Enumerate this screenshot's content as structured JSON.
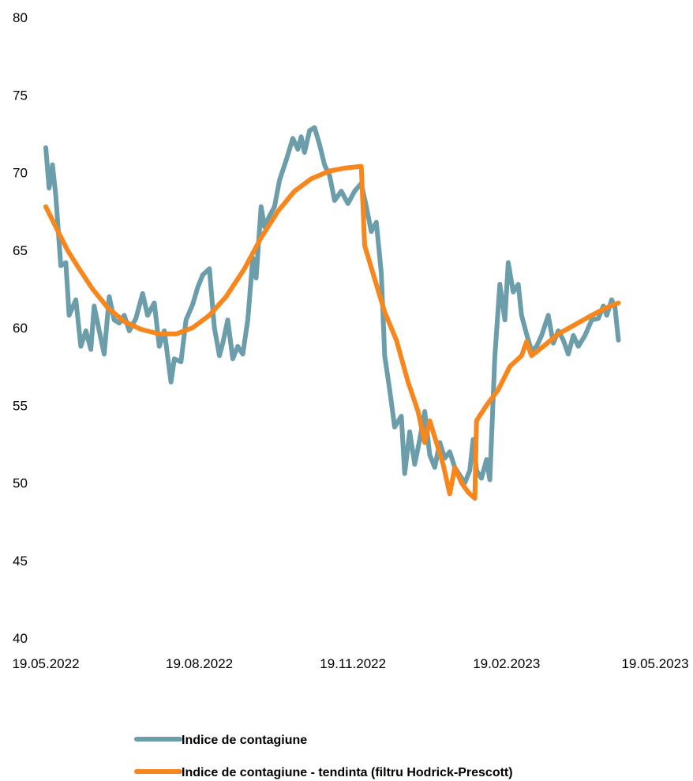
{
  "chart_data": {
    "type": "line",
    "title": "",
    "xlabel": "",
    "ylabel": "",
    "x_axis": {
      "type": "date",
      "range": [
        "2022-05-19",
        "2023-05-19"
      ],
      "tick_values": [
        "2022-05-19",
        "2022-08-19",
        "2022-11-19",
        "2023-02-19",
        "2023-05-19"
      ],
      "tick_labels": [
        "19.05.2022",
        "19.08.2022",
        "19.11.2022",
        "19.02.2023",
        "19.05.2023"
      ]
    },
    "y_axis": {
      "range": [
        40,
        80
      ],
      "tick_values": [
        40,
        45,
        50,
        55,
        60,
        65,
        70,
        75,
        80
      ],
      "tick_labels": [
        "40",
        "45",
        "50",
        "55",
        "60",
        "65",
        "70",
        "75",
        "80"
      ]
    },
    "grid": false,
    "legend_position": "bottom",
    "series": [
      {
        "name": "Indice de contagiune",
        "color": "#6B9DAA",
        "points": [
          [
            "2022-05-19",
            71.6
          ],
          [
            "2022-05-21",
            69.0
          ],
          [
            "2022-05-23",
            70.5
          ],
          [
            "2022-05-25",
            68.5
          ],
          [
            "2022-05-28",
            64.0
          ],
          [
            "2022-05-31",
            64.2
          ],
          [
            "2022-06-02",
            60.8
          ],
          [
            "2022-06-06",
            61.8
          ],
          [
            "2022-06-09",
            58.8
          ],
          [
            "2022-06-12",
            59.8
          ],
          [
            "2022-06-15",
            58.6
          ],
          [
            "2022-06-17",
            61.4
          ],
          [
            "2022-06-20",
            59.8
          ],
          [
            "2022-06-23",
            58.3
          ],
          [
            "2022-06-26",
            62.0
          ],
          [
            "2022-06-29",
            60.5
          ],
          [
            "2022-07-02",
            60.3
          ],
          [
            "2022-07-05",
            60.8
          ],
          [
            "2022-07-08",
            59.8
          ],
          [
            "2022-07-12",
            60.6
          ],
          [
            "2022-07-16",
            62.2
          ],
          [
            "2022-07-19",
            60.8
          ],
          [
            "2022-07-23",
            61.6
          ],
          [
            "2022-07-26",
            58.8
          ],
          [
            "2022-07-29",
            59.8
          ],
          [
            "2022-08-02",
            56.5
          ],
          [
            "2022-08-04",
            58.0
          ],
          [
            "2022-08-08",
            57.8
          ],
          [
            "2022-08-11",
            60.5
          ],
          [
            "2022-08-15",
            61.5
          ],
          [
            "2022-08-18",
            62.6
          ],
          [
            "2022-08-21",
            63.4
          ],
          [
            "2022-08-25",
            63.8
          ],
          [
            "2022-08-28",
            60.0
          ],
          [
            "2022-08-31",
            58.2
          ],
          [
            "2022-09-02",
            59.0
          ],
          [
            "2022-09-05",
            60.5
          ],
          [
            "2022-09-08",
            58.0
          ],
          [
            "2022-09-11",
            58.8
          ],
          [
            "2022-09-14",
            58.3
          ],
          [
            "2022-09-17",
            60.5
          ],
          [
            "2022-09-20",
            64.5
          ],
          [
            "2022-09-22",
            63.2
          ],
          [
            "2022-09-25",
            67.8
          ],
          [
            "2022-09-27",
            66.5
          ],
          [
            "2022-09-30",
            67.2
          ],
          [
            "2022-10-03",
            67.8
          ],
          [
            "2022-10-06",
            69.5
          ],
          [
            "2022-10-10",
            70.8
          ],
          [
            "2022-10-14",
            72.2
          ],
          [
            "2022-10-17",
            71.5
          ],
          [
            "2022-10-19",
            72.3
          ],
          [
            "2022-10-21",
            71.3
          ],
          [
            "2022-10-24",
            72.7
          ],
          [
            "2022-10-27",
            72.9
          ],
          [
            "2022-10-30",
            71.8
          ],
          [
            "2022-11-02",
            70.5
          ],
          [
            "2022-11-05",
            69.8
          ],
          [
            "2022-11-08",
            68.2
          ],
          [
            "2022-11-12",
            68.8
          ],
          [
            "2022-11-16",
            68.0
          ],
          [
            "2022-11-20",
            68.8
          ],
          [
            "2022-11-24",
            69.3
          ],
          [
            "2022-11-27",
            67.8
          ],
          [
            "2022-11-30",
            66.2
          ],
          [
            "2022-12-03",
            66.8
          ],
          [
            "2022-12-06",
            63.5
          ],
          [
            "2022-12-08",
            58.2
          ],
          [
            "2022-12-11",
            56.0
          ],
          [
            "2022-12-14",
            53.6
          ],
          [
            "2022-12-18",
            54.3
          ],
          [
            "2022-12-20",
            50.6
          ],
          [
            "2022-12-23",
            53.3
          ],
          [
            "2022-12-26",
            51.2
          ],
          [
            "2022-12-29",
            52.8
          ],
          [
            "2023-01-01",
            54.6
          ],
          [
            "2023-01-04",
            51.8
          ],
          [
            "2023-01-07",
            51.0
          ],
          [
            "2023-01-10",
            52.6
          ],
          [
            "2023-01-13",
            51.6
          ],
          [
            "2023-01-16",
            52.0
          ],
          [
            "2023-01-19",
            51.0
          ],
          [
            "2023-01-22",
            50.5
          ],
          [
            "2023-01-25",
            50.0
          ],
          [
            "2023-01-28",
            50.8
          ],
          [
            "2023-01-30",
            52.8
          ],
          [
            "2023-02-01",
            50.8
          ],
          [
            "2023-02-04",
            50.3
          ],
          [
            "2023-02-07",
            51.5
          ],
          [
            "2023-02-09",
            50.2
          ],
          [
            "2023-02-12",
            58.2
          ],
          [
            "2023-02-15",
            62.8
          ],
          [
            "2023-02-18",
            60.5
          ],
          [
            "2023-02-20",
            64.2
          ],
          [
            "2023-02-23",
            62.3
          ],
          [
            "2023-02-26",
            62.8
          ],
          [
            "2023-02-28",
            60.8
          ],
          [
            "2023-03-03",
            59.6
          ],
          [
            "2023-03-06",
            58.5
          ],
          [
            "2023-03-09",
            58.8
          ],
          [
            "2023-03-12",
            59.5
          ],
          [
            "2023-03-16",
            60.8
          ],
          [
            "2023-03-19",
            59.0
          ],
          [
            "2023-03-22",
            59.8
          ],
          [
            "2023-03-25",
            59.2
          ],
          [
            "2023-03-28",
            58.3
          ],
          [
            "2023-03-31",
            59.5
          ],
          [
            "2023-04-03",
            58.8
          ],
          [
            "2023-04-07",
            59.5
          ],
          [
            "2023-04-11",
            60.5
          ],
          [
            "2023-04-15",
            60.6
          ],
          [
            "2023-04-18",
            61.4
          ],
          [
            "2023-04-20",
            60.8
          ],
          [
            "2023-04-23",
            61.8
          ],
          [
            "2023-04-25",
            61.3
          ],
          [
            "2023-04-27",
            59.2
          ]
        ]
      },
      {
        "name": "Indice de contagiune - tendinta (filtru Hodrick-Prescott)",
        "color": "#F7861C",
        "points": [
          [
            "2022-05-19",
            67.8
          ],
          [
            "2022-05-25",
            66.5
          ],
          [
            "2022-06-01",
            65.0
          ],
          [
            "2022-06-08",
            63.8
          ],
          [
            "2022-06-16",
            62.5
          ],
          [
            "2022-06-25",
            61.3
          ],
          [
            "2022-07-05",
            60.4
          ],
          [
            "2022-07-15",
            59.9
          ],
          [
            "2022-07-26",
            59.6
          ],
          [
            "2022-08-05",
            59.6
          ],
          [
            "2022-08-15",
            60.0
          ],
          [
            "2022-08-25",
            60.8
          ],
          [
            "2022-09-04",
            62.0
          ],
          [
            "2022-09-15",
            63.8
          ],
          [
            "2022-09-25",
            65.8
          ],
          [
            "2022-10-05",
            67.5
          ],
          [
            "2022-10-15",
            68.8
          ],
          [
            "2022-10-25",
            69.6
          ],
          [
            "2022-11-05",
            70.1
          ],
          [
            "2022-11-15",
            70.3
          ],
          [
            "2022-11-24",
            70.4
          ],
          [
            "2022-11-26",
            65.3
          ],
          [
            "2022-12-01",
            63.5
          ],
          [
            "2022-12-08",
            61.0
          ],
          [
            "2022-12-15",
            59.2
          ],
          [
            "2022-12-22",
            56.5
          ],
          [
            "2022-12-28",
            54.6
          ],
          [
            "2023-01-01",
            52.6
          ],
          [
            "2023-01-04",
            54.0
          ],
          [
            "2023-01-08",
            52.6
          ],
          [
            "2023-01-12",
            51.2
          ],
          [
            "2023-01-16",
            49.3
          ],
          [
            "2023-01-19",
            51.0
          ],
          [
            "2023-01-23",
            50.0
          ],
          [
            "2023-01-27",
            49.4
          ],
          [
            "2023-01-31",
            49.0
          ],
          [
            "2023-02-01",
            54.0
          ],
          [
            "2023-02-07",
            55.0
          ],
          [
            "2023-02-14",
            56.0
          ],
          [
            "2023-02-21",
            57.5
          ],
          [
            "2023-02-28",
            58.2
          ],
          [
            "2023-03-03",
            59.1
          ],
          [
            "2023-03-06",
            58.2
          ],
          [
            "2023-03-13",
            58.8
          ],
          [
            "2023-03-22",
            59.6
          ],
          [
            "2023-04-01",
            60.2
          ],
          [
            "2023-04-11",
            60.8
          ],
          [
            "2023-04-20",
            61.3
          ],
          [
            "2023-04-27",
            61.6
          ]
        ]
      }
    ]
  }
}
